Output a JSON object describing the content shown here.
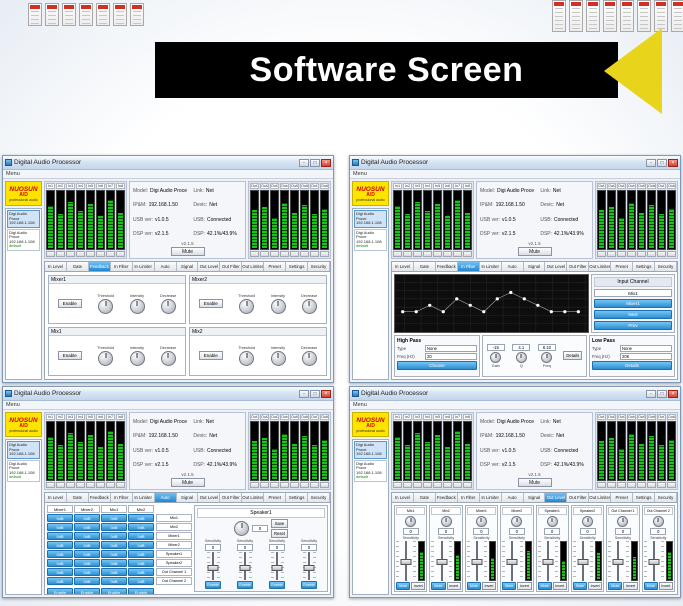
{
  "banner": {
    "title": "Software Screen",
    "bg": "#000000",
    "arrow_color": "#e9d41c"
  },
  "app": {
    "window_title": "Digital Audio Processor",
    "window_buttons": {
      "min": "-",
      "max": "□",
      "close": "×"
    },
    "menu_label": "Menu",
    "logo": {
      "brand": "NUOSUN",
      "model": "A/D",
      "tagline": "professional audio"
    },
    "device_list": [
      {
        "line1": "Digi Audio Proce",
        "line2": "192.168.1.108"
      },
      {
        "line1": "Digi Audio Proce",
        "line2": "192.168.1.108",
        "note": "default"
      }
    ],
    "info": {
      "left_pairs": [
        {
          "label": "Model:",
          "value": "Digi Audio Proce"
        },
        {
          "label": "IP&M:",
          "value": "192.168.1.50"
        },
        {
          "label": "USB ver:",
          "value": "v1.0.5"
        },
        {
          "label": "DSP ver:",
          "value": "v2.1.5"
        }
      ],
      "right_pairs": [
        {
          "label": "Link:",
          "value": "Net"
        },
        {
          "label": "Devic:",
          "value": "Net"
        },
        {
          "label": "USB:",
          "value": "Connected"
        },
        {
          "label": "DSP:",
          "value": "42.1%/43.9%"
        }
      ],
      "version": "v2.1.5",
      "mute_label": "Mute"
    },
    "in_channels": [
      "In1",
      "In2",
      "In3",
      "In4",
      "In5",
      "In6",
      "In7",
      "In8"
    ],
    "out_channels": [
      "Out1",
      "Out2",
      "Out3",
      "Out4",
      "Out5",
      "Out6",
      "Out7",
      "Out8"
    ],
    "in_levels": [
      72,
      58,
      80,
      64,
      76,
      55,
      82,
      60
    ],
    "out_levels": [
      65,
      70,
      52,
      78,
      60,
      74,
      58,
      68
    ],
    "tabs": [
      "In Level",
      "Gate",
      "Feedback",
      "In Filter",
      "In Limiter",
      "Auto",
      "Signal",
      "Out Level",
      "Out Filter",
      "Out Limiter",
      "Preset",
      "Settings",
      "Security"
    ],
    "colors": {
      "accent_blue": "#2b8ed2",
      "meter_green": "#17c417",
      "logo_yellow": "#ffe400",
      "logo_red": "#d00000"
    }
  },
  "windows": [
    {
      "screen": "mixer",
      "active_tab": 2,
      "panels": [
        {
          "name": "Mixer1",
          "enable_label": "Enable",
          "knobs": [
            "Threshold",
            "Intensity",
            "Decrease"
          ]
        },
        {
          "name": "Mixer2",
          "enable_label": "Enable",
          "knobs": [
            "Threshold",
            "Intensity",
            "Decrease"
          ]
        },
        {
          "name": "Mix1",
          "enable_label": "Enable",
          "knobs": [
            "Threshold",
            "Intensity",
            "Decrease"
          ]
        },
        {
          "name": "Mix2",
          "enable_label": "Enable",
          "knobs": [
            "Threshold",
            "Intensity",
            "Decrease"
          ]
        }
      ]
    },
    {
      "screen": "eq",
      "active_tab": 3,
      "graph": {
        "points_db": [
          0,
          0,
          1,
          0,
          2,
          1,
          0,
          2,
          3,
          2,
          1,
          0,
          0,
          0
        ]
      },
      "input_channel": {
        "title": "Input Channel",
        "field_value": "Mix1",
        "buttons": [
          "Mixer1",
          "Next",
          "Prev"
        ]
      },
      "high_pass": {
        "title": "High Pass",
        "rows": [
          {
            "label": "Type",
            "value": "None"
          },
          {
            "label": "Freq (Hz)",
            "value": "20"
          }
        ],
        "button": "Choose"
      },
      "eq_params": {
        "values": [
          "-15",
          "4.1",
          "8.10"
        ],
        "labels": [
          "Gain",
          "Q",
          "Freq"
        ],
        "button": "Details"
      },
      "low_pass": {
        "title": "Low Pass",
        "rows": [
          {
            "label": "Type",
            "value": "None"
          },
          {
            "label": "Freq (Hz)",
            "value": "20K"
          }
        ],
        "button": "Details"
      }
    },
    {
      "screen": "matrix",
      "active_tab": 5,
      "col_headers": [
        "Mixer1",
        "Mixer2",
        "Mix1",
        "Mix2"
      ],
      "row_labels": [
        "Mix1",
        "Mix2",
        "Mixer1",
        "Mixer2",
        "Speaker1",
        "Speaker2",
        "Out Channel 1",
        "Out Channel 2"
      ],
      "cell_label": "0dB",
      "enable_label": "Enable",
      "speaker_panel": {
        "title": "Speaker1",
        "knob_value": "0",
        "save_label": "Save",
        "reset_label": "Reset",
        "slider_label": "Sensitivity",
        "slider_value": "0",
        "enable_label": "Enable",
        "slider_count": 4
      }
    },
    {
      "screen": "levels",
      "active_tab": 7,
      "strip_names": [
        "Mix1",
        "Mix2",
        "Mixer1",
        "Mixer2",
        "Speaker1",
        "Speaker2",
        "Out Channel 1",
        "Out Channel 2"
      ],
      "strip": {
        "value": "0",
        "sens_label": "Sensitivity",
        "mute_label": "Mute",
        "invert_label": "Invert"
      },
      "strip_levels": [
        70,
        62,
        55,
        75,
        48,
        68,
        58,
        72
      ]
    }
  ],
  "top_strips": {
    "left_cells": 7,
    "right_cells": 8
  }
}
